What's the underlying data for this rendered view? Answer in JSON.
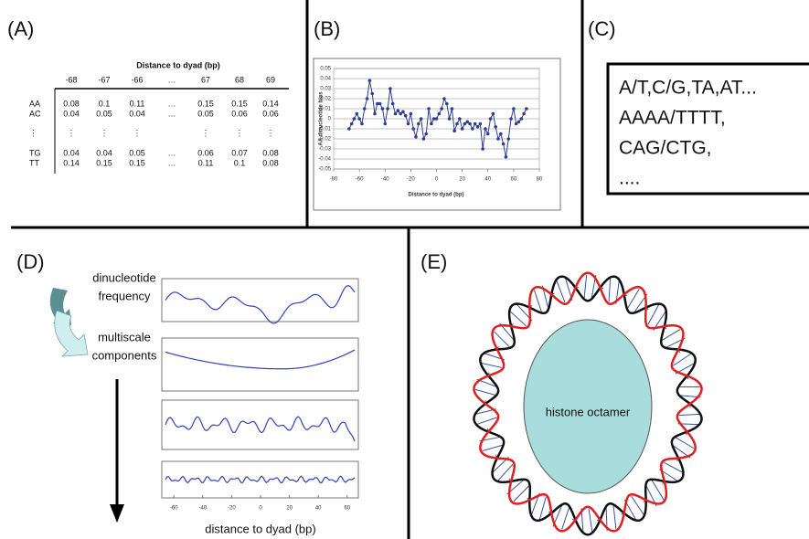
{
  "panels": {
    "a": {
      "label": "(A)",
      "table": {
        "title": "Distance to dyad (bp)",
        "columns": [
          "-68",
          "-67",
          "-66",
          "…",
          "67",
          "68",
          "69"
        ],
        "rows": [
          {
            "name": "AA",
            "cells": [
              "0.08",
              "0.1",
              "0.11",
              "…",
              "0.15",
              "0.15",
              "0.14"
            ]
          },
          {
            "name": "AC",
            "cells": [
              "0.04",
              "0.05",
              "0.04",
              "…",
              "0.05",
              "0.06",
              "0.06"
            ]
          },
          {
            "name": "⋮",
            "cells": [
              "⋮",
              "⋮",
              "⋮",
              null,
              "⋮",
              "⋮",
              "⋮"
            ]
          },
          {
            "name": "TG",
            "cells": [
              "0.04",
              "0.04",
              "0.05",
              "…",
              "0.06",
              "0.07",
              "0.08"
            ]
          },
          {
            "name": "TT",
            "cells": [
              "0.14",
              "0.15",
              "0.15",
              "…",
              "0.11",
              "0.1",
              "0.08"
            ]
          }
        ]
      }
    },
    "b": {
      "label": "(B)",
      "chart": {
        "type": "line",
        "x_label": "Distance to dyad (bp)",
        "y_label": "AA dinucleotide bias",
        "color": "#2e3f8f",
        "grid": true,
        "x": [
          -68,
          -66,
          -64,
          -62,
          -60,
          -58,
          -56,
          -54,
          -52,
          -50,
          -48,
          -46,
          -44,
          -42,
          -40,
          -38,
          -36,
          -34,
          -32,
          -30,
          -28,
          -26,
          -24,
          -22,
          -20,
          -18,
          -16,
          -14,
          -12,
          -10,
          -8,
          -6,
          -4,
          -2,
          0,
          2,
          4,
          6,
          8,
          10,
          12,
          14,
          16,
          18,
          20,
          22,
          24,
          26,
          28,
          30,
          32,
          34,
          36,
          38,
          40,
          42,
          44,
          46,
          48,
          50,
          52,
          54,
          56,
          58,
          60,
          62,
          64,
          66,
          68,
          70
        ],
        "values": [
          -0.01,
          -0.005,
          0.0,
          0.005,
          0.0,
          -0.005,
          0.01,
          0.02,
          0.038,
          0.025,
          0.005,
          0.015,
          0.015,
          0.01,
          -0.005,
          0.01,
          0.03,
          0.015,
          0.005,
          0.008,
          0.005,
          0.007,
          0.003,
          -0.005,
          0.005,
          -0.01,
          -0.018,
          -0.005,
          0.0,
          -0.02,
          -0.015,
          0.01,
          -0.005,
          0.0,
          0.0,
          0.005,
          0.01,
          0.02,
          0.015,
          0.0,
          0.01,
          -0.012,
          -0.005,
          0.0,
          -0.01,
          -0.005,
          -0.003,
          -0.005,
          -0.01,
          -0.005,
          -0.008,
          -0.005,
          -0.03,
          -0.01,
          -0.015,
          0.0,
          0.005,
          -0.008,
          -0.02,
          -0.015,
          -0.025,
          -0.038,
          -0.02,
          0.0,
          0.01,
          -0.005,
          -0.003,
          0.0,
          0.005,
          0.01
        ],
        "xlim": [
          -80,
          80
        ],
        "xticks": [
          -80,
          -60,
          -40,
          -20,
          0,
          20,
          40,
          60,
          80
        ],
        "ylim": [
          -0.05,
          0.05
        ],
        "yticks": [
          0.05,
          0.04,
          0.03,
          0.02,
          0.01,
          0,
          -0.01,
          -0.02,
          -0.03,
          -0.04,
          -0.05
        ]
      }
    },
    "c": {
      "label": "(C)",
      "lines": [
        "A/T,C/G,TA,AT...",
        "AAAA/TTTT,",
        "CAG/CTG,",
        "...."
      ]
    },
    "d": {
      "label": "(D)",
      "step1": [
        "dinucleotide",
        "frequency"
      ],
      "step2": [
        "multiscale",
        "components"
      ],
      "xticks": [
        -60,
        -40,
        -20,
        0,
        20,
        40,
        60
      ],
      "x_label": "distance to dyad (bp)"
    },
    "e": {
      "label": "(E)",
      "core": "histone octamer"
    }
  }
}
